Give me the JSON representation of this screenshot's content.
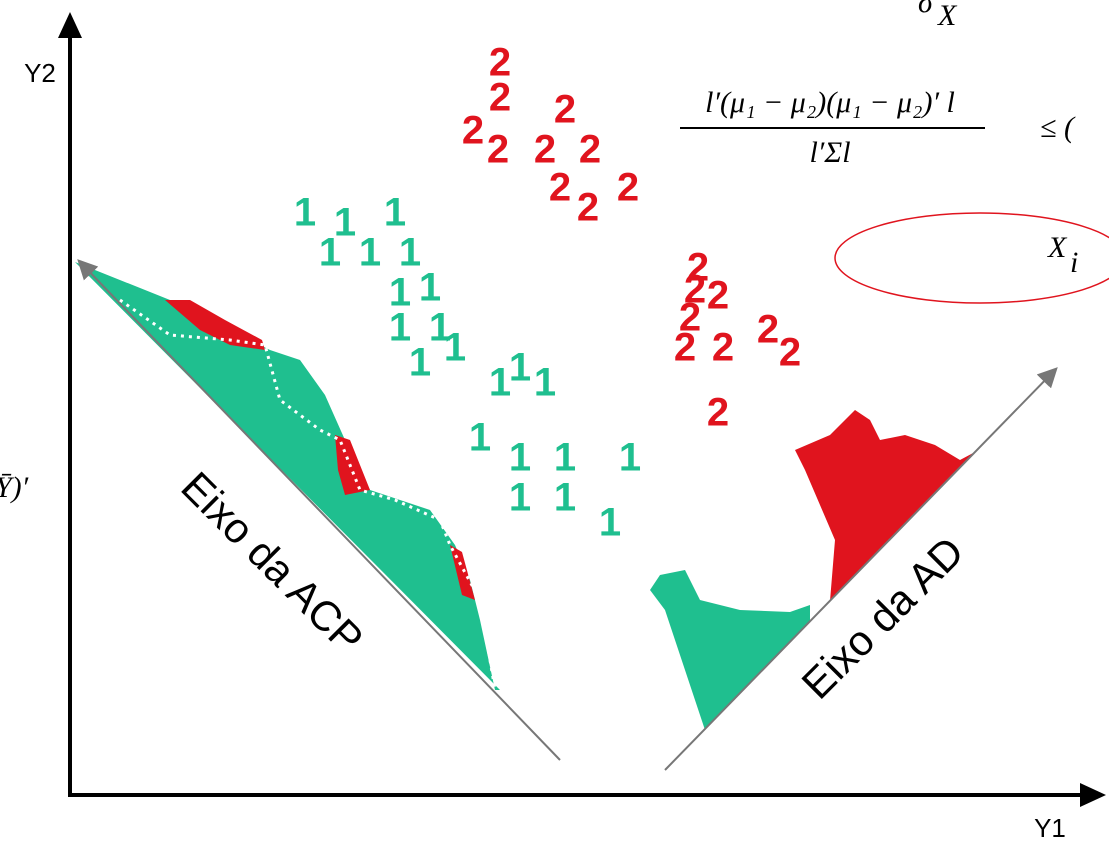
{
  "axes": {
    "y_label": "Y2",
    "x_label": "Y1"
  },
  "axis_names": {
    "pca": "Eixo da ACP",
    "da": "Eixo da AD"
  },
  "formula": {
    "top": "σ",
    "top_sub": "X",
    "numerator": "l′(μ₁ − μ₂)(μ₁ − μ₂)′ l",
    "denominator": "l′Σl",
    "relation": "≤ (",
    "circled": "X",
    "circled_sub": "i",
    "left": "Ȳ)′"
  },
  "group_1": [
    "1",
    "1",
    "1",
    "1",
    "1",
    "1",
    "1",
    "1",
    "1",
    "1",
    "1",
    "1",
    "1",
    "1",
    "1",
    "1",
    "1",
    "1",
    "1",
    "1",
    "1",
    "1"
  ],
  "group_2": [
    "2",
    "2",
    "2",
    "2",
    "2",
    "2",
    "2",
    "2",
    "2",
    "2",
    "2",
    "2",
    "2",
    "2",
    "2",
    "2",
    "2",
    "2",
    "2"
  ]
}
